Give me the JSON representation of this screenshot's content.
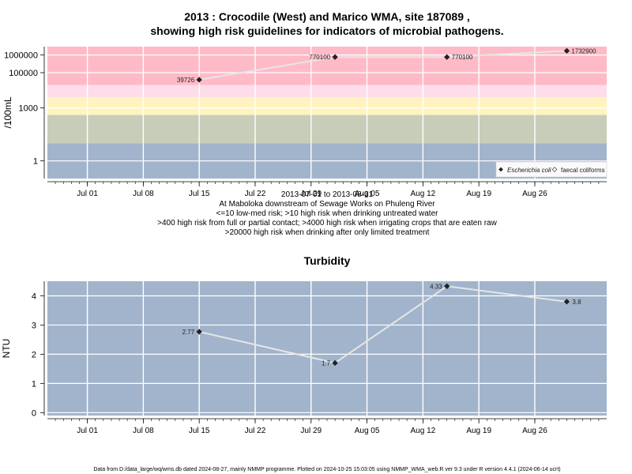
{
  "chart_data": [
    {
      "type": "line",
      "title": [
        "2013 : Crocodile (West) and Marico WMA, site 187089 ,",
        "showing high risk guidelines for indicators of microbial pathogens."
      ],
      "ylabel": "/100mL",
      "yscale": "log",
      "ylim": [
        0.1,
        3000000
      ],
      "yticks": [
        1,
        1000,
        100000,
        1000000
      ],
      "ytick_labels": [
        "1",
        "1000",
        "100000",
        "1000000"
      ],
      "xticks": [
        "Jul 01",
        "Jul 08",
        "Jul 15",
        "Jul 22",
        "Jul 29",
        "Aug 05",
        "Aug 12",
        "Aug 19",
        "Aug 26"
      ],
      "x_caption": [
        "2013-07-01 to 2013-08-31",
        "At Maboloka downstream of Sewage Works on Phuleng River",
        "<=10 low-med risk; >10 high risk when drinking untreated water",
        ">400 high risk from full or partial contact; >4000 high risk when irrigating crops that are eaten raw",
        ">20000 high risk when drinking after only limited treatment"
      ],
      "bands": [
        {
          "from": 0.1,
          "to": 10,
          "color": "#a2b4cc"
        },
        {
          "from": 10,
          "to": 400,
          "color": "#c7cdb9"
        },
        {
          "from": 400,
          "to": 4000,
          "color": "#fff4c0"
        },
        {
          "from": 4000,
          "to": 20000,
          "color": "#ffdcea"
        },
        {
          "from": 20000,
          "to": 3000000,
          "color": "#ffbac7"
        }
      ],
      "series": [
        {
          "name": "Escherichia coli",
          "x": [
            "2013-07-15",
            "2013-08-01",
            "2013-08-15",
            "2013-08-30"
          ],
          "values": [
            39726,
            770100,
            770100,
            1732900
          ],
          "labels": [
            "39726",
            "770100",
            "770100",
            "1732900"
          ]
        },
        {
          "name": "faecal coliforms",
          "x": [],
          "values": []
        }
      ],
      "legend": {
        "position": "bottom-right",
        "items": [
          "Escherichia coli",
          "faecal coliforms"
        ]
      }
    },
    {
      "type": "line",
      "title": "Turbidity",
      "ylabel": "NTU",
      "ylim": [
        -0.1,
        4.5
      ],
      "yticks": [
        0,
        1,
        2,
        3,
        4
      ],
      "xticks": [
        "Jul 01",
        "Jul 08",
        "Jul 15",
        "Jul 22",
        "Jul 29",
        "Aug 05",
        "Aug 12",
        "Aug 19",
        "Aug 26"
      ],
      "series": [
        {
          "name": "",
          "x": [
            "2013-07-15",
            "2013-08-01",
            "2013-08-15",
            "2013-08-30"
          ],
          "values": [
            2.77,
            1.7,
            4.33,
            3.8
          ],
          "labels": [
            "2.77",
            "1.7",
            "4.33",
            "3.8"
          ]
        }
      ]
    }
  ],
  "footer": "Data from D:/data_large/wq/wms.db dated 2024-08-27, mainly NMMP programme. Plotted on 2024-10-25 15:03:05 using NMMP_WMA_web.R ver 9.3 under R version 4.4.1 (2024-06-14 ucrt)"
}
